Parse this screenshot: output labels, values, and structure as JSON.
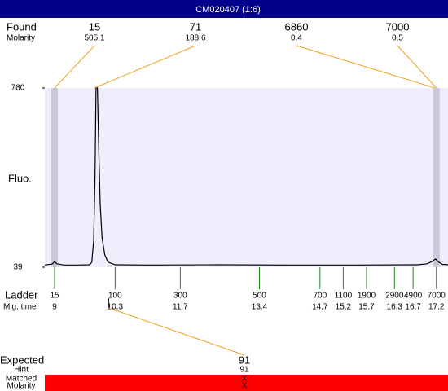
{
  "title": "CM020407 (1:6)",
  "chart_data": {
    "type": "electropherogram",
    "y_label": "Fluo.",
    "ylim": [
      39,
      780
    ],
    "yticks": [
      39,
      780
    ],
    "xlim": [
      8.79,
      17.45
    ],
    "color": "#000000",
    "x": [
      8.79,
      8.95,
      9.0,
      9.05,
      9.2,
      9.5,
      9.75,
      9.8,
      9.84,
      9.87,
      9.89,
      9.92,
      9.95,
      9.98,
      10.02,
      10.08,
      10.15,
      10.3,
      11.0,
      12.5,
      14.0,
      15.5,
      16.8,
      17.0,
      17.1,
      17.18,
      17.25,
      17.32,
      17.45
    ],
    "values": [
      48,
      52,
      62,
      53,
      48,
      48,
      49,
      60,
      150,
      420,
      780,
      780,
      520,
      300,
      160,
      90,
      60,
      49,
      48,
      49,
      48,
      48,
      49,
      53,
      62,
      73,
      60,
      51,
      49
    ],
    "found": {
      "label": "Found",
      "molarity_label": "Molarity",
      "sizes": [
        15,
        71,
        6860,
        7000
      ],
      "molarity": [
        505.1,
        188.6,
        0.4,
        0.5
      ]
    },
    "ladder": {
      "label": "Ladder",
      "time_label": "Mig. time",
      "sizes": [
        15,
        100,
        300,
        500,
        700,
        1100,
        1900,
        2900,
        4900,
        7000
      ],
      "times": [
        9,
        10.3,
        11.7,
        13.4,
        14.7,
        15.2,
        15.7,
        16.3,
        16.7,
        17.2
      ]
    },
    "expected": {
      "label": "Expected",
      "value": 91,
      "hint_label": "Hint",
      "hint": 91,
      "matched_label": "Matched",
      "matched": "X",
      "molarity_label": "Molarity",
      "molarity": "X"
    }
  }
}
